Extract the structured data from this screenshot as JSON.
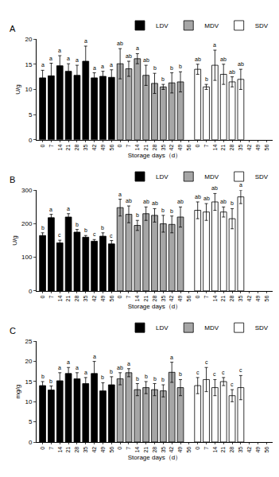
{
  "chart_data": [
    {
      "type": "bar",
      "title": "A",
      "x_label": "Storage days（d）",
      "y_label": "U/g",
      "categories": [
        "0",
        "7",
        "14",
        "21",
        "28",
        "35",
        "42",
        "49",
        "56",
        "0",
        "7",
        "14",
        "21",
        "28",
        "35",
        "42",
        "49",
        "56",
        "0",
        "7",
        "14",
        "21",
        "28",
        "35",
        "42",
        "49",
        "56"
      ],
      "series": [
        {
          "name": "LDV",
          "color": "#000000",
          "values": [
            12.3,
            12.7,
            14.7,
            13.6,
            12.8,
            15.6,
            12.3,
            12.6,
            12.4,
            null,
            null,
            null,
            null,
            null,
            null,
            null,
            null,
            null,
            null,
            null,
            null,
            null,
            null,
            null,
            null,
            null,
            null
          ],
          "errors": [
            1.5,
            2.5,
            2,
            1.5,
            2,
            3,
            1,
            1,
            1.5,
            null,
            null,
            null,
            null,
            null,
            null,
            null,
            null,
            null,
            null,
            null,
            null,
            null,
            null,
            null,
            null,
            null,
            null
          ],
          "letters": [
            "a",
            "a",
            "a",
            "a",
            "a",
            "a",
            "a",
            "a",
            "a",
            null,
            null,
            null,
            null,
            null,
            null,
            null,
            null,
            null,
            null,
            null,
            null,
            null,
            null,
            null,
            null,
            null,
            null
          ]
        },
        {
          "name": "MDV",
          "color": "#a6a6a6",
          "values": [
            null,
            null,
            null,
            null,
            null,
            null,
            null,
            null,
            null,
            15.1,
            14.1,
            16.1,
            12.8,
            11.2,
            10.5,
            11.3,
            11.5,
            null,
            null,
            null,
            null,
            null,
            null,
            null,
            null,
            null,
            null
          ],
          "errors": [
            null,
            null,
            null,
            null,
            null,
            null,
            null,
            null,
            null,
            3,
            1.5,
            1,
            2,
            2,
            0.5,
            2,
            2,
            null,
            null,
            null,
            null,
            null,
            null,
            null,
            null,
            null,
            null
          ],
          "letters": [
            null,
            null,
            null,
            null,
            null,
            null,
            null,
            null,
            null,
            "ab",
            "ab",
            "a",
            "ab",
            "b",
            "b",
            "b",
            "b",
            null,
            null,
            null,
            null,
            null,
            null,
            null,
            null,
            null,
            null
          ]
        },
        {
          "name": "SDV",
          "color": "#ffffff",
          "values": [
            null,
            null,
            null,
            null,
            null,
            null,
            null,
            null,
            null,
            null,
            null,
            null,
            null,
            null,
            null,
            null,
            null,
            null,
            14.0,
            10.5,
            14.8,
            13.0,
            11.5,
            12.0,
            null,
            null,
            null
          ],
          "errors": [
            null,
            null,
            null,
            null,
            null,
            null,
            null,
            null,
            null,
            null,
            null,
            null,
            null,
            null,
            null,
            null,
            null,
            null,
            1,
            0.5,
            3,
            2,
            1,
            2,
            null,
            null,
            null
          ],
          "letters": [
            null,
            null,
            null,
            null,
            null,
            null,
            null,
            null,
            null,
            null,
            null,
            null,
            null,
            null,
            null,
            null,
            null,
            null,
            "ab",
            "b",
            "a",
            "ab",
            "ab",
            "ab",
            null,
            null,
            null
          ]
        }
      ],
      "ylim": [
        0,
        20
      ],
      "yticks": [
        0,
        5,
        10,
        15,
        20
      ],
      "grid": false,
      "legend": "top right"
    },
    {
      "type": "bar",
      "title": "B",
      "x_label": "Storage days（d）",
      "y_label": "U/g",
      "categories": [
        "0",
        "7",
        "14",
        "21",
        "28",
        "35",
        "42",
        "49",
        "56",
        "0",
        "7",
        "14",
        "21",
        "28",
        "35",
        "42",
        "49",
        "56",
        "0",
        "7",
        "14",
        "21",
        "28",
        "35",
        "42",
        "49",
        "56"
      ],
      "series": [
        {
          "name": "LDV",
          "color": "#000000",
          "values": [
            165,
            218,
            143,
            220,
            175,
            160,
            148,
            163,
            140,
            null,
            null,
            null,
            null,
            null,
            null,
            null,
            null,
            null,
            null,
            null,
            null,
            null,
            null,
            null,
            null,
            null,
            null
          ],
          "errors": [
            8,
            10,
            8,
            10,
            8,
            5,
            5,
            10,
            10,
            null,
            null,
            null,
            null,
            null,
            null,
            null,
            null,
            null,
            null,
            null,
            null,
            null,
            null,
            null,
            null,
            null,
            null
          ],
          "letters": [
            "b",
            "a",
            "c",
            "a",
            "b",
            "b",
            "c",
            "b",
            "c",
            null,
            null,
            null,
            null,
            null,
            null,
            null,
            null,
            null,
            null,
            null,
            null,
            null,
            null,
            null,
            null,
            null,
            null
          ]
        },
        {
          "name": "MDV",
          "color": "#a6a6a6",
          "values": [
            null,
            null,
            null,
            null,
            null,
            null,
            null,
            null,
            null,
            248,
            228,
            195,
            230,
            225,
            200,
            198,
            220,
            null,
            null,
            null,
            null,
            null,
            null,
            null,
            null,
            null,
            null
          ],
          "errors": [
            null,
            null,
            null,
            null,
            null,
            null,
            null,
            null,
            null,
            25,
            25,
            15,
            20,
            20,
            25,
            25,
            30,
            null,
            null,
            null,
            null,
            null,
            null,
            null,
            null,
            null,
            null
          ],
          "letters": [
            null,
            null,
            null,
            null,
            null,
            null,
            null,
            null,
            null,
            "a",
            "ab",
            "b",
            "ab",
            "ab",
            "b",
            "b",
            "ab",
            null,
            null,
            null,
            null,
            null,
            null,
            null,
            null,
            null,
            null
          ]
        },
        {
          "name": "SDV",
          "color": "#ffffff",
          "values": [
            null,
            null,
            null,
            null,
            null,
            null,
            null,
            null,
            null,
            null,
            null,
            null,
            null,
            null,
            null,
            null,
            null,
            null,
            240,
            235,
            265,
            235,
            215,
            280,
            null,
            null,
            null
          ],
          "errors": [
            null,
            null,
            null,
            null,
            null,
            null,
            null,
            null,
            null,
            null,
            null,
            null,
            null,
            null,
            null,
            null,
            null,
            null,
            25,
            25,
            25,
            15,
            30,
            20,
            null,
            null,
            null
          ],
          "letters": [
            null,
            null,
            null,
            null,
            null,
            null,
            null,
            null,
            null,
            null,
            null,
            null,
            null,
            null,
            null,
            null,
            null,
            null,
            "ab",
            "ab",
            "ab",
            "ab",
            "b",
            "a",
            null,
            null,
            null
          ]
        }
      ],
      "ylim": [
        0,
        300
      ],
      "yticks": [
        0,
        100,
        200,
        300
      ],
      "grid": false,
      "legend": "top right"
    },
    {
      "type": "bar",
      "title": "C",
      "x_label": "Storage days（d）",
      "y_label": "mg/g",
      "categories": [
        "0",
        "7",
        "14",
        "21",
        "28",
        "35",
        "42",
        "49",
        "56",
        "0",
        "7",
        "14",
        "21",
        "28",
        "35",
        "42",
        "49",
        "56",
        "0",
        "7",
        "14",
        "21",
        "28",
        "35",
        "42",
        "49",
        "56"
      ],
      "series": [
        {
          "name": "LDV",
          "color": "#000000",
          "values": [
            14.0,
            12.9,
            15.2,
            17.0,
            15.7,
            14.5,
            17.0,
            12.7,
            14.2,
            null,
            null,
            null,
            null,
            null,
            null,
            null,
            null,
            null,
            null,
            null,
            null,
            null,
            null,
            null,
            null,
            null,
            null
          ],
          "errors": [
            1,
            1,
            2,
            1.5,
            1.5,
            1.5,
            3,
            2,
            2,
            null,
            null,
            null,
            null,
            null,
            null,
            null,
            null,
            null,
            null,
            null,
            null,
            null,
            null,
            null,
            null,
            null,
            null
          ],
          "letters": [
            "b",
            "b",
            "a",
            "a",
            "a",
            "a",
            "a",
            "b",
            "b",
            null,
            null,
            null,
            null,
            null,
            null,
            null,
            null,
            null,
            null,
            null,
            null,
            null,
            null,
            null,
            null,
            null,
            null
          ]
        },
        {
          "name": "MDV",
          "color": "#a6a6a6",
          "values": [
            null,
            null,
            null,
            null,
            null,
            null,
            null,
            null,
            null,
            15.7,
            17.2,
            13.0,
            13.5,
            13.0,
            12.7,
            17.3,
            13.5,
            null,
            null,
            null,
            null,
            null,
            null,
            null,
            null,
            null,
            null
          ],
          "errors": [
            null,
            null,
            null,
            null,
            null,
            null,
            null,
            null,
            null,
            1.5,
            1,
            1.5,
            1.5,
            1.5,
            1.5,
            2.5,
            2,
            null,
            null,
            null,
            null,
            null,
            null,
            null,
            null,
            null,
            null
          ],
          "letters": [
            null,
            null,
            null,
            null,
            null,
            null,
            null,
            null,
            null,
            "ab",
            "a",
            "b",
            "b",
            "b",
            "b",
            "a",
            "b",
            null,
            null,
            null,
            null,
            null,
            null,
            null,
            null,
            null,
            null
          ]
        },
        {
          "name": "SDV",
          "color": "#ffffff",
          "values": [
            null,
            null,
            null,
            null,
            null,
            null,
            null,
            null,
            null,
            null,
            null,
            null,
            null,
            null,
            null,
            null,
            null,
            null,
            14.0,
            15.5,
            13.5,
            15.0,
            11.5,
            13.5,
            null,
            null,
            null
          ],
          "errors": [
            null,
            null,
            null,
            null,
            null,
            null,
            null,
            null,
            null,
            null,
            null,
            null,
            null,
            null,
            null,
            null,
            null,
            null,
            2,
            3,
            2,
            1,
            1.5,
            3,
            null,
            null,
            null
          ],
          "letters": [
            null,
            null,
            null,
            null,
            null,
            null,
            null,
            null,
            null,
            null,
            null,
            null,
            null,
            null,
            null,
            null,
            null,
            null,
            "c",
            "c",
            "c",
            "c",
            "c",
            "c",
            null,
            null,
            null
          ]
        }
      ],
      "ylim": [
        0,
        25
      ],
      "yticks": [
        0,
        5,
        10,
        15,
        20,
        25
      ],
      "grid": false,
      "legend": "top right"
    }
  ]
}
